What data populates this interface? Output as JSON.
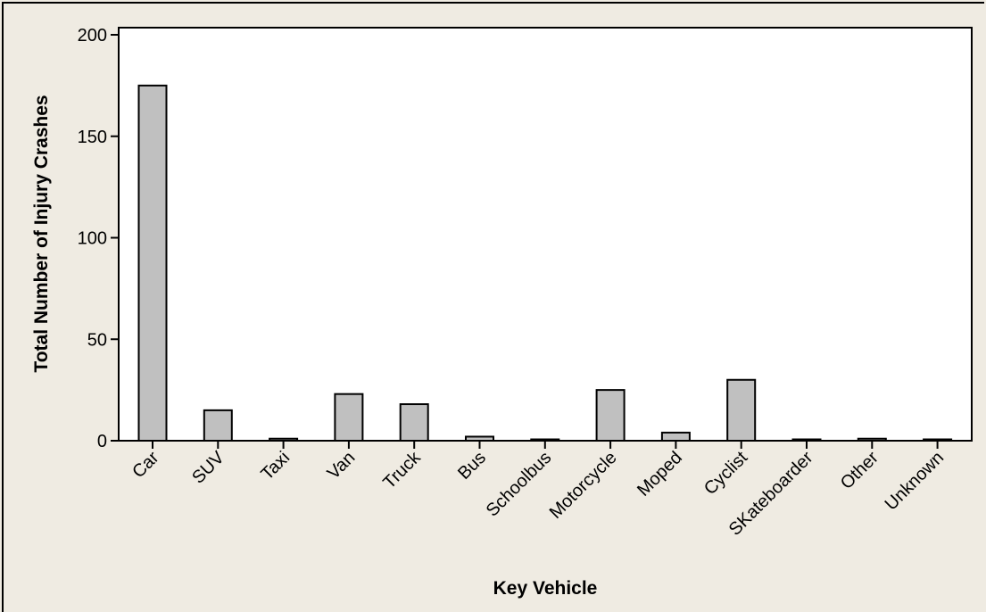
{
  "chart_data": {
    "type": "bar",
    "title": "",
    "xlabel": "Key Vehicle",
    "ylabel": "Total Number of Injury Crashes",
    "categories": [
      "Car",
      "SUV",
      "Taxi",
      "Van",
      "Truck",
      "Bus",
      "Schoolbus",
      "Motorcycle",
      "Moped",
      "Cyclist",
      "SKateboarder",
      "Other",
      "Unknown"
    ],
    "values": [
      175,
      15,
      1,
      23,
      18,
      2,
      0,
      25,
      4,
      30,
      0,
      1,
      0
    ],
    "ylim": [
      0,
      200
    ],
    "yticks": [
      0,
      50,
      100,
      150,
      200
    ],
    "grid": false,
    "colors": {
      "bar": "#c0c0c0",
      "outline": "#000000",
      "plot_bg": "#ffffff",
      "page_bg": "#efebe2"
    }
  }
}
